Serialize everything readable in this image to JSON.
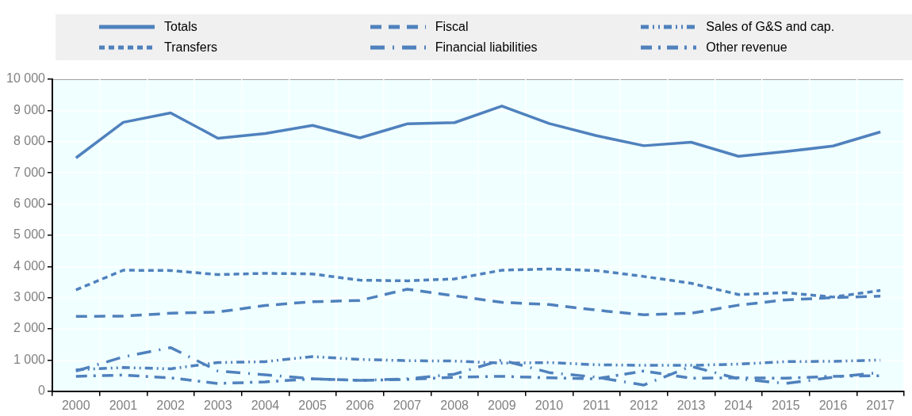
{
  "chart_data": {
    "type": "line",
    "categories": [
      "2000",
      "2001",
      "2002",
      "2003",
      "2004",
      "2005",
      "2006",
      "2007",
      "2008",
      "2009",
      "2010",
      "2011",
      "2012",
      "2013",
      "2014",
      "2015",
      "2016",
      "2017"
    ],
    "series": [
      {
        "name": "Totals",
        "color": "#4f81bd",
        "line_style": "solid",
        "values": [
          7480,
          8620,
          8920,
          8110,
          8260,
          8520,
          8120,
          8570,
          8610,
          9140,
          8580,
          8190,
          7870,
          7980,
          7530,
          7680,
          7860,
          8310
        ]
      },
      {
        "name": "Transfers",
        "color": "#4f81bd",
        "line_style": "dotted",
        "values": [
          3250,
          3880,
          3870,
          3740,
          3780,
          3760,
          3560,
          3540,
          3600,
          3880,
          3920,
          3870,
          3680,
          3460,
          3100,
          3160,
          3020,
          3230
        ]
      },
      {
        "name": "Fiscal",
        "color": "#4f81bd",
        "line_style": "dashed",
        "values": [
          2400,
          2410,
          2500,
          2540,
          2750,
          2870,
          2910,
          3270,
          3060,
          2850,
          2780,
          2600,
          2450,
          2500,
          2760,
          2930,
          3000,
          3050
        ]
      },
      {
        "name": "Financial liabilities",
        "color": "#4f81bd",
        "line_style": "dashdotdot",
        "values": [
          650,
          1100,
          1400,
          650,
          530,
          400,
          350,
          400,
          550,
          1000,
          600,
          450,
          200,
          800,
          400,
          250,
          450,
          600
        ]
      },
      {
        "name": "Sales of G&S and cap.",
        "color": "#4f81bd",
        "line_style": "dashdot",
        "values": [
          690,
          760,
          720,
          920,
          950,
          1110,
          1020,
          980,
          970,
          900,
          920,
          850,
          830,
          830,
          870,
          950,
          960,
          1000
        ]
      },
      {
        "name": "Other revenue",
        "color": "#4f81bd",
        "line_style": "longdashdot",
        "values": [
          480,
          520,
          430,
          250,
          300,
          400,
          350,
          380,
          450,
          480,
          430,
          400,
          650,
          420,
          430,
          420,
          480,
          500
        ]
      }
    ],
    "ylim": [
      0,
      10000
    ],
    "yticks": [
      0,
      {
        "value": 1000,
        "label": "1 000"
      },
      {
        "value": 2000,
        "label": "2 000"
      },
      {
        "value": 3000,
        "label": "3 000"
      },
      {
        "value": 4000,
        "label": "4 000"
      },
      {
        "value": 5000,
        "label": "5 000"
      },
      {
        "value": 6000,
        "label": "6 000"
      },
      {
        "value": 7000,
        "label": "7 000"
      },
      {
        "value": 8000,
        "label": "8 000"
      },
      {
        "value": 9000,
        "label": "9 000"
      },
      {
        "value": 10000,
        "label": "10 000"
      }
    ],
    "grid": true,
    "legend": "top",
    "marker": "none"
  }
}
